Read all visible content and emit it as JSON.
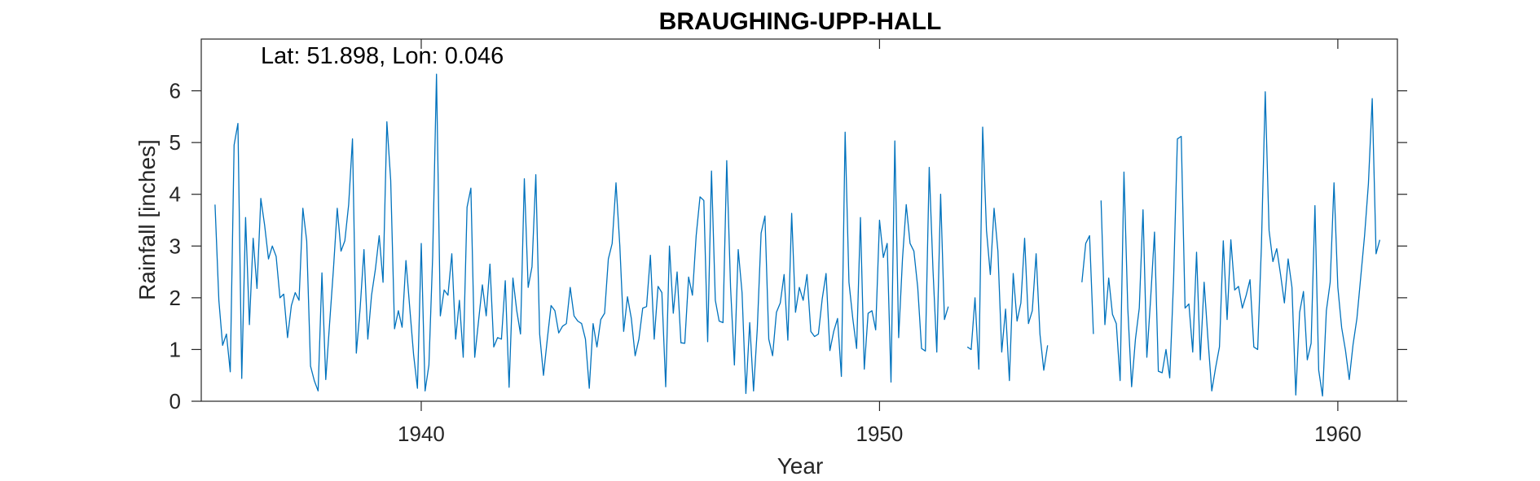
{
  "chart_data": {
    "type": "line",
    "title": "BRAUGHING-UPP-HALL",
    "annotation": "Lat: 51.898, Lon: 0.046",
    "xlabel": "Year",
    "ylabel": "Rainfall [inches]",
    "xlim": [
      1935.2,
      1961.3
    ],
    "ylim": [
      0,
      7
    ],
    "x_ticks": [
      1940,
      1950,
      1960
    ],
    "y_ticks": [
      0,
      1,
      2,
      3,
      4,
      5,
      6
    ],
    "grid": false,
    "series": [
      {
        "color": "#0072BD",
        "start_year": 1935.5,
        "step_months": 1,
        "values": [
          3.8,
          1.95,
          1.08,
          1.3,
          0.57,
          4.95,
          5.37,
          0.44,
          3.55,
          1.48,
          3.15,
          2.18,
          3.92,
          3.4,
          2.75,
          3.0,
          2.8,
          2.0,
          2.07,
          1.23,
          1.85,
          2.1,
          1.95,
          3.73,
          3.1,
          0.68,
          0.4,
          0.2,
          2.48,
          0.42,
          1.5,
          2.55,
          3.73,
          2.9,
          3.1,
          3.8,
          5.07,
          0.93,
          1.8,
          2.93,
          1.2,
          2.05,
          2.55,
          3.2,
          2.3,
          5.4,
          4.27,
          1.4,
          1.75,
          1.43,
          2.72,
          1.8,
          0.9,
          0.25,
          3.05,
          0.2,
          0.7,
          2.8,
          6.32,
          1.65,
          2.15,
          2.05,
          2.85,
          1.2,
          1.95,
          0.85,
          3.75,
          4.12,
          0.85,
          1.55,
          2.25,
          1.65,
          2.65,
          1.05,
          1.23,
          1.2,
          2.33,
          0.27,
          2.38,
          1.75,
          1.3,
          4.3,
          2.2,
          2.6,
          4.38,
          1.3,
          0.5,
          1.2,
          1.85,
          1.75,
          1.32,
          1.45,
          1.5,
          2.2,
          1.65,
          1.55,
          1.5,
          1.2,
          0.25,
          1.5,
          1.05,
          1.58,
          1.7,
          2.75,
          3.05,
          4.22,
          3.0,
          1.35,
          2.02,
          1.6,
          0.88,
          1.2,
          1.8,
          1.83,
          2.82,
          1.2,
          2.22,
          2.1,
          0.28,
          3.0,
          1.7,
          2.5,
          1.13,
          1.12,
          2.4,
          2.05,
          3.2,
          3.95,
          3.88,
          1.15,
          4.45,
          1.95,
          1.55,
          1.52,
          4.65,
          2.2,
          0.7,
          2.93,
          2.1,
          0.15,
          1.52,
          0.2,
          1.4,
          3.25,
          3.58,
          1.2,
          0.88,
          1.72,
          1.9,
          2.45,
          1.18,
          3.63,
          1.72,
          2.2,
          1.95,
          2.45,
          1.35,
          1.25,
          1.3,
          1.98,
          2.47,
          0.98,
          1.35,
          1.6,
          0.48,
          5.2,
          2.3,
          1.6,
          1.02,
          3.55,
          0.62,
          1.7,
          1.75,
          1.38,
          3.5,
          2.78,
          3.05,
          0.37,
          5.03,
          1.23,
          2.75,
          3.8,
          3.05,
          2.9,
          2.2,
          1.02,
          0.97,
          4.52,
          2.55,
          0.95,
          4.0,
          1.58,
          1.83,
          null,
          null,
          null,
          null,
          1.05,
          1.0,
          2.0,
          0.62,
          5.3,
          3.3,
          2.45,
          3.73,
          2.9,
          0.95,
          1.78,
          0.4,
          2.47,
          1.55,
          1.9,
          3.15,
          1.5,
          1.75,
          2.85,
          1.3,
          0.6,
          1.08,
          null,
          null,
          null,
          null,
          null,
          null,
          null,
          null,
          2.3,
          3.05,
          3.2,
          1.3,
          null,
          3.88,
          1.48,
          2.38,
          1.68,
          1.5,
          0.4,
          4.43,
          1.8,
          0.28,
          1.2,
          1.8,
          3.7,
          0.85,
          2.0,
          3.27,
          0.58,
          0.55,
          1.0,
          0.45,
          2.35,
          5.07,
          5.12,
          1.8,
          1.88,
          0.95,
          2.88,
          0.8,
          2.3,
          1.2,
          0.2,
          0.65,
          1.05,
          3.1,
          1.58,
          3.12,
          2.15,
          2.22,
          1.8,
          2.05,
          2.35,
          1.05,
          1.0,
          3.0,
          5.98,
          3.3,
          2.7,
          2.95,
          2.45,
          1.9,
          2.75,
          2.2,
          0.12,
          1.72,
          2.12,
          0.8,
          1.12,
          3.78,
          0.6,
          0.1,
          1.75,
          2.3,
          4.22,
          2.2,
          1.42,
          0.98,
          0.42,
          1.1,
          1.6,
          2.4,
          3.2,
          4.2,
          5.85,
          2.85,
          3.12
        ]
      }
    ]
  }
}
